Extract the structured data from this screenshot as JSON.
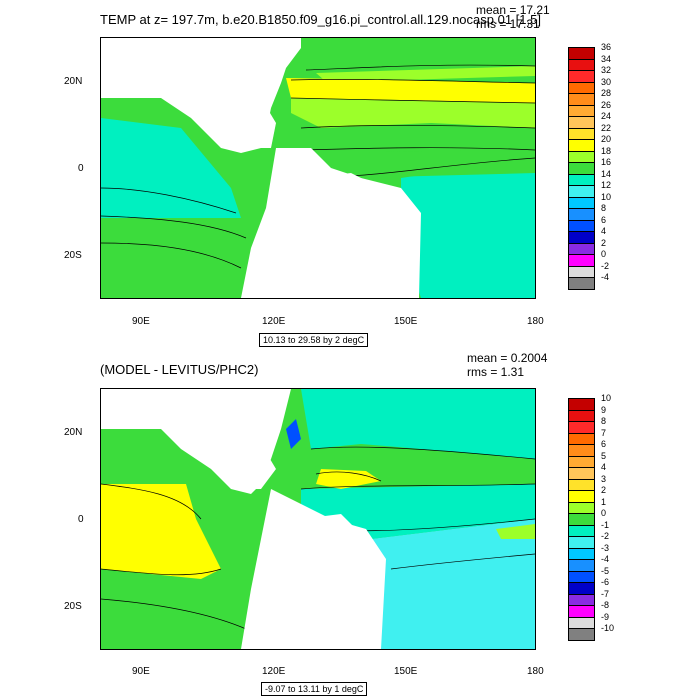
{
  "panel1": {
    "title": "TEMP at z= 197.7m, b.e20.B1850.f09_g16.pi_control.all.129.nocasp.01 [1,5]",
    "mean": "mean = 17.21",
    "rms": "rms = 17.31",
    "x_ticks": [
      "90E",
      "120E",
      "150E",
      "180"
    ],
    "y_ticks": [
      "20N",
      "0",
      "20S"
    ],
    "info": "10.13 to 29.58 by 2 degC",
    "colorbar": {
      "labels": [
        "36",
        "34",
        "32",
        "30",
        "28",
        "26",
        "24",
        "22",
        "20",
        "18",
        "16",
        "14",
        "12",
        "10",
        "8",
        "6",
        "4",
        "2",
        "0",
        "-2",
        "-4"
      ],
      "colors": [
        "#c40000",
        "#e81010",
        "#ff2a2a",
        "#ff6a00",
        "#ff8c1a",
        "#ffaa33",
        "#ffc55a",
        "#ffe22a",
        "#ffff00",
        "#9cff2a",
        "#3cdc3c",
        "#00f0c0",
        "#40f0f0",
        "#00c8ff",
        "#1890ff",
        "#0050ff",
        "#0000c8",
        "#8a2be2",
        "#ff00ff",
        "#dcdcdc",
        "#808080"
      ]
    }
  },
  "panel2": {
    "title": "(MODEL - LEVITUS/PHC2)",
    "mean": "mean = 0.2004",
    "rms": "rms = 1.31",
    "x_ticks": [
      "90E",
      "120E",
      "150E",
      "180"
    ],
    "y_ticks": [
      "20N",
      "0",
      "20S"
    ],
    "info": "-9.07 to 13.11 by 1 degC",
    "colorbar": {
      "labels": [
        "10",
        "9",
        "8",
        "7",
        "6",
        "5",
        "4",
        "3",
        "2",
        "1",
        "0",
        "-1",
        "-2",
        "-3",
        "-4",
        "-5",
        "-6",
        "-7",
        "-8",
        "-9",
        "-10"
      ],
      "colors": [
        "#c40000",
        "#e81010",
        "#ff2a2a",
        "#ff6a00",
        "#ff8c1a",
        "#ffaa33",
        "#ffc55a",
        "#ffe22a",
        "#ffff00",
        "#9cff2a",
        "#3cdc3c",
        "#00f0c0",
        "#40f0f0",
        "#00c8ff",
        "#1890ff",
        "#0050ff",
        "#0000c8",
        "#8a2be2",
        "#ff00ff",
        "#dcdcdc",
        "#808080"
      ]
    }
  }
}
